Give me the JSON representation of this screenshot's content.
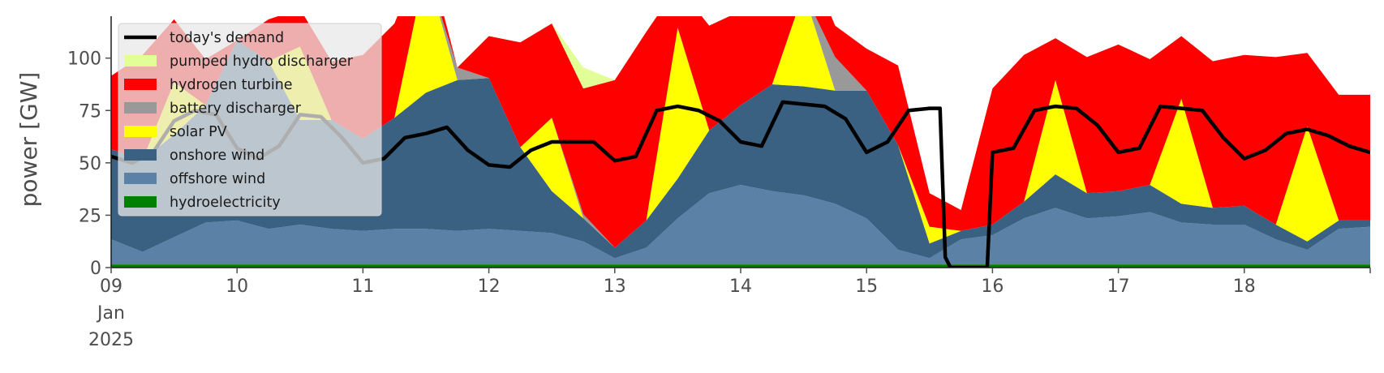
{
  "chart_data": {
    "type": "area",
    "ylabel": "power [GW]",
    "ylim": [
      0,
      120
    ],
    "yticks": [
      0,
      25,
      50,
      75,
      100
    ],
    "xlim": [
      "2025-01-09 00:00",
      "2025-01-19 00:00"
    ],
    "xticks": [
      {
        "date": "2025-01-09",
        "label": "09",
        "sublabel_1": "Jan",
        "sublabel_2": "2025"
      },
      {
        "date": "2025-01-10",
        "label": "10"
      },
      {
        "date": "2025-01-11",
        "label": "11"
      },
      {
        "date": "2025-01-12",
        "label": "12"
      },
      {
        "date": "2025-01-13",
        "label": "13"
      },
      {
        "date": "2025-01-14",
        "label": "14"
      },
      {
        "date": "2025-01-15",
        "label": "15"
      },
      {
        "date": "2025-01-16",
        "label": "16"
      },
      {
        "date": "2025-01-17",
        "label": "17"
      },
      {
        "date": "2025-01-18",
        "label": "18"
      }
    ],
    "grid": false,
    "legend_placement": "upper-left",
    "x": [
      "2025-01-09 00:00",
      "2025-01-09 06:00",
      "2025-01-09 12:00",
      "2025-01-09 18:00",
      "2025-01-10 00:00",
      "2025-01-10 06:00",
      "2025-01-10 12:00",
      "2025-01-10 18:00",
      "2025-01-11 00:00",
      "2025-01-11 06:00",
      "2025-01-11 12:00",
      "2025-01-11 18:00",
      "2025-01-12 00:00",
      "2025-01-12 06:00",
      "2025-01-12 12:00",
      "2025-01-12 18:00",
      "2025-01-13 00:00",
      "2025-01-13 06:00",
      "2025-01-13 12:00",
      "2025-01-13 18:00",
      "2025-01-14 00:00",
      "2025-01-14 06:00",
      "2025-01-14 12:00",
      "2025-01-14 18:00",
      "2025-01-15 00:00",
      "2025-01-15 06:00",
      "2025-01-15 12:00",
      "2025-01-15 18:00",
      "2025-01-16 00:00",
      "2025-01-16 06:00",
      "2025-01-16 12:00",
      "2025-01-16 18:00",
      "2025-01-17 00:00",
      "2025-01-17 06:00",
      "2025-01-17 12:00",
      "2025-01-17 18:00",
      "2025-01-18 00:00",
      "2025-01-18 06:00",
      "2025-01-18 12:00",
      "2025-01-18 18:00",
      "2025-01-19 00:00"
    ],
    "stack_series": [
      {
        "name": "hydroelectricity",
        "color": "#008000",
        "values": [
          1.5,
          1.5,
          1.5,
          1.5,
          1.5,
          1.5,
          1.5,
          1.5,
          1.5,
          1.5,
          1.5,
          1.5,
          1.5,
          1.5,
          1.5,
          1.5,
          1.5,
          1.5,
          1.5,
          1.5,
          1.5,
          1.5,
          1.5,
          1.5,
          1.5,
          1.5,
          1.5,
          1.5,
          1.5,
          1.5,
          1.5,
          1.5,
          1.5,
          1.5,
          1.5,
          1.5,
          1.5,
          1.5,
          1.5,
          1.5,
          1.5
        ]
      },
      {
        "name": "offshore wind",
        "color": "#5b81a7",
        "values": [
          12,
          6,
          13,
          20,
          21,
          17,
          19,
          17,
          16,
          17,
          17,
          16,
          17,
          16,
          15,
          11,
          3,
          8,
          22,
          34,
          38,
          35,
          33,
          29,
          22,
          7,
          3,
          12,
          14,
          22,
          27,
          22,
          23,
          25,
          20,
          19,
          19,
          12,
          7,
          17,
          18
        ]
      },
      {
        "name": "onshore wind",
        "color": "#3b6182",
        "values": [
          43,
          44,
          49,
          56,
          86,
          80,
          50,
          52,
          44,
          53,
          65,
          72,
          72,
          40,
          20,
          11,
          5,
          13,
          19,
          30,
          38,
          51,
          52,
          54,
          61,
          50,
          7,
          4,
          5,
          8,
          16,
          12,
          12,
          13,
          9,
          8,
          9,
          7,
          4,
          4,
          3
        ]
      },
      {
        "name": "solar PV",
        "color": "#ffff00",
        "values": [
          0,
          0,
          25,
          0,
          0,
          0,
          35,
          0,
          0,
          0,
          60,
          0,
          0,
          0,
          35,
          0,
          0,
          0,
          72,
          0,
          0,
          0,
          45,
          0,
          0,
          0,
          8,
          0,
          0,
          0,
          45,
          0,
          0,
          0,
          50,
          0,
          0,
          0,
          55,
          0,
          0
        ]
      },
      {
        "name": "battery discharger",
        "color": "#999999",
        "values": [
          0,
          0,
          0,
          0,
          0,
          0,
          0,
          0,
          0,
          0,
          0,
          6,
          0,
          0,
          0,
          2,
          0,
          0,
          0,
          0,
          0,
          0,
          0,
          16,
          0,
          0,
          0,
          0,
          0,
          0,
          0,
          0,
          0,
          0,
          0,
          0,
          0,
          0,
          0,
          0,
          0
        ]
      },
      {
        "name": "hydrogen turbine",
        "color": "#ff0000",
        "values": [
          35,
          50,
          30,
          22,
          0,
          20,
          18,
          28,
          40,
          45,
          10,
          0,
          20,
          50,
          45,
          60,
          80,
          90,
          20,
          50,
          45,
          40,
          20,
          15,
          20,
          38,
          16,
          10,
          65,
          70,
          20,
          65,
          70,
          60,
          30,
          70,
          72,
          80,
          35,
          60,
          60
        ]
      },
      {
        "name": "pumped hydro discharger",
        "color": "#e1ff96",
        "values": [
          0,
          0,
          0,
          0,
          0,
          0,
          0,
          0,
          0,
          0,
          0,
          0,
          0,
          0,
          0,
          10,
          0,
          0,
          0,
          0,
          0,
          0,
          0,
          0,
          0,
          0,
          0,
          0,
          0,
          0,
          0,
          0,
          0,
          0,
          0,
          0,
          0,
          0,
          0,
          0,
          0
        ]
      }
    ],
    "line_series": {
      "name": "today's demand",
      "color": "#000000",
      "x": [
        "2025-01-09 00:00",
        "2025-01-09 04:00",
        "2025-01-09 08:00",
        "2025-01-09 12:00",
        "2025-01-09 16:00",
        "2025-01-09 20:00",
        "2025-01-10 00:00",
        "2025-01-10 04:00",
        "2025-01-10 08:00",
        "2025-01-10 12:00",
        "2025-01-10 16:00",
        "2025-01-10 20:00",
        "2025-01-11 00:00",
        "2025-01-11 04:00",
        "2025-01-11 08:00",
        "2025-01-11 12:00",
        "2025-01-11 16:00",
        "2025-01-11 20:00",
        "2025-01-12 00:00",
        "2025-01-12 04:00",
        "2025-01-12 08:00",
        "2025-01-12 12:00",
        "2025-01-12 16:00",
        "2025-01-12 20:00",
        "2025-01-13 00:00",
        "2025-01-13 04:00",
        "2025-01-13 08:00",
        "2025-01-13 12:00",
        "2025-01-13 16:00",
        "2025-01-13 20:00",
        "2025-01-14 00:00",
        "2025-01-14 04:00",
        "2025-01-14 08:00",
        "2025-01-14 12:00",
        "2025-01-14 16:00",
        "2025-01-14 20:00",
        "2025-01-15 00:00",
        "2025-01-15 04:00",
        "2025-01-15 08:00",
        "2025-01-15 12:00",
        "2025-01-15 14:00",
        "2025-01-15 15:00",
        "2025-01-15 16:00",
        "2025-01-15 20:00",
        "2025-01-15 23:00",
        "2025-01-16 00:00",
        "2025-01-16 04:00",
        "2025-01-16 08:00",
        "2025-01-16 12:00",
        "2025-01-16 16:00",
        "2025-01-16 20:00",
        "2025-01-17 00:00",
        "2025-01-17 04:00",
        "2025-01-17 08:00",
        "2025-01-17 12:00",
        "2025-01-17 16:00",
        "2025-01-17 20:00",
        "2025-01-18 00:00",
        "2025-01-18 04:00",
        "2025-01-18 08:00",
        "2025-01-18 12:00",
        "2025-01-18 16:00",
        "2025-01-18 20:00",
        "2025-01-19 00:00"
      ],
      "values": [
        53,
        50,
        55,
        70,
        75,
        73,
        57,
        52,
        58,
        73,
        72,
        62,
        50,
        52,
        62,
        64,
        67,
        56,
        49,
        48,
        56,
        60,
        60,
        60,
        51,
        53,
        75,
        77,
        75,
        70,
        60,
        58,
        79,
        78,
        77,
        71,
        55,
        60,
        75,
        76,
        76,
        5,
        0,
        0,
        0,
        55,
        57,
        75,
        77,
        76,
        68,
        55,
        57,
        77,
        76,
        75,
        62,
        52,
        56,
        64,
        66,
        63,
        58,
        55
      ]
    }
  },
  "legend": {
    "items": [
      {
        "label": "today's demand",
        "color": "#000000",
        "kind": "line"
      },
      {
        "label": "pumped hydro discharger",
        "color": "#e1ff96",
        "kind": "patch"
      },
      {
        "label": "hydrogen turbine",
        "color": "#ff0000",
        "kind": "patch"
      },
      {
        "label": "battery discharger",
        "color": "#999999",
        "kind": "patch"
      },
      {
        "label": "solar PV",
        "color": "#ffff00",
        "kind": "patch"
      },
      {
        "label": "onshore wind",
        "color": "#3b6182",
        "kind": "patch"
      },
      {
        "label": "offshore wind",
        "color": "#5b81a7",
        "kind": "patch"
      },
      {
        "label": "hydroelectricity",
        "color": "#008000",
        "kind": "patch"
      }
    ]
  }
}
